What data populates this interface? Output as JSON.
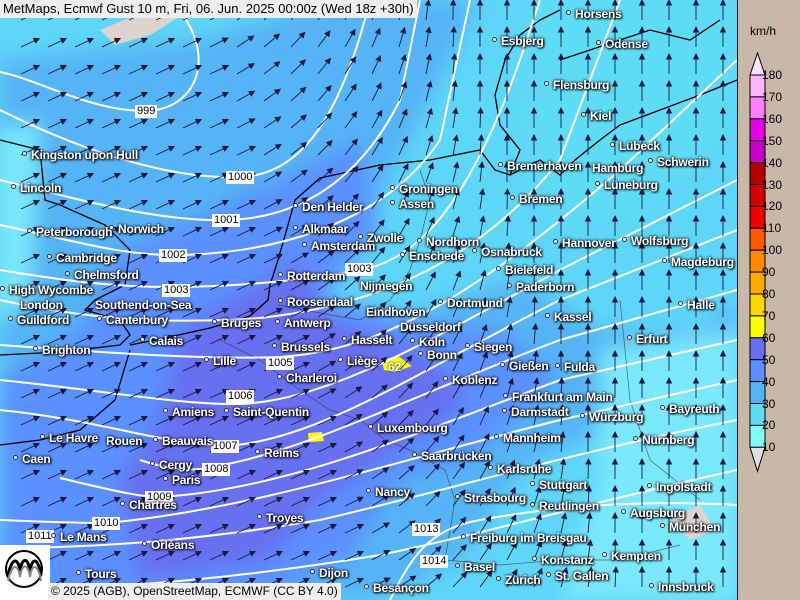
{
  "header": {
    "title": "MetMaps, Ecmwf Gust 10 m, Fri, 06. Jun. 2025 00:00z (Wed 18z +30h)"
  },
  "legend": {
    "unit": "km/h",
    "ticks": [
      "180",
      "170",
      "160",
      "150",
      "140",
      "130",
      "120",
      "110",
      "100",
      "90",
      "80",
      "70",
      "60",
      "50",
      "40",
      "30",
      "20",
      "10"
    ],
    "colors": [
      "#ffb4ff",
      "#ff80ff",
      "#e600e6",
      "#c800c8",
      "#b40000",
      "#d20000",
      "#ee0000",
      "#ff5a00",
      "#ff8800",
      "#ffaa00",
      "#ffd700",
      "#ffff00",
      "#6670f0",
      "#5a90ff",
      "#55b4f5",
      "#5fdcf5",
      "#80ffff"
    ],
    "over_color": "#fde0fe",
    "under_color": "#e4e0e0"
  },
  "map": {
    "max_value": "62",
    "fill_colors": {
      "20-30": "#5fdcf5",
      "30-40": "#55b4f5",
      "40-50": "#5a90ff",
      "50-60": "#6670f0",
      "60-70": "#ffff00"
    },
    "isobars": [
      "999",
      "1000",
      "1001",
      "1002",
      "1003",
      "1003",
      "1005",
      "1006",
      "1007",
      "1008",
      "1009",
      "1010",
      "1011",
      "1013",
      "1014"
    ],
    "cities": [
      "Horsens",
      "Esbjerg",
      "Odense",
      "Flensburg",
      "Kiel",
      "Lübeck",
      "Schwerin",
      "Bremerhaven",
      "Hamburg",
      "Lüneburg",
      "Groningen",
      "Assen",
      "Bremen",
      "Den Helder",
      "Alkmaar",
      "Amsterdam",
      "Zwolle",
      "Nordhorn",
      "Enschede",
      "Osnabrück",
      "Hannover",
      "Wolfsburg",
      "Magdeburg",
      "Bielefeld",
      "Rotterdam",
      "Nijmegen",
      "Paderborn",
      "Roosendaal",
      "Eindhoven",
      "Dortmund",
      "Halle",
      "Kassel",
      "Düsseldorf",
      "Bruges",
      "Antwerp",
      "Guildford",
      "Canterbury",
      "Southend-on-Sea",
      "London",
      "High Wycombe",
      "Chelmsford",
      "Cambridge",
      "Peterborough",
      "Norwich",
      "Lincoln",
      "Kingston upon Hull",
      "Brighton",
      "Calais",
      "Lille",
      "Brussels",
      "Hasselt",
      "Liège",
      "Charleroi",
      "Köln",
      "Bonn",
      "Siegen",
      "Gießen",
      "Fulda",
      "Erfurt",
      "Koblenz",
      "Frankfurt am Main",
      "Darmstadt",
      "Würzburg",
      "Bayreuth",
      "Amiens",
      "Saint-Quentin",
      "Luxembourg",
      "Mannheim",
      "Nürnberg",
      "Le Havre",
      "Rouen",
      "Beauvais",
      "Reims",
      "Saarbrücken",
      "Caen",
      "Karlsruhe",
      "Cergy",
      "Paris",
      "Stuttgart",
      "Ingolstadt",
      "Nancy",
      "Strasbourg",
      "Chartres",
      "Reutlingen",
      "Augsburg",
      "München",
      "Troyes",
      "Le Mans",
      "Freiburg im Breisgau",
      "Orléans",
      "Konstanz",
      "Kempten",
      "Basel",
      "Tours",
      "Zürich",
      "St. Gallen",
      "Dijon",
      "Besançon",
      "Innsbruck"
    ]
  },
  "footer": {
    "copyright": "© 2025 (AGB), OpenStreetMap, ECMWF (CC BY 4.0)",
    "logo_text": "METMAPS"
  }
}
